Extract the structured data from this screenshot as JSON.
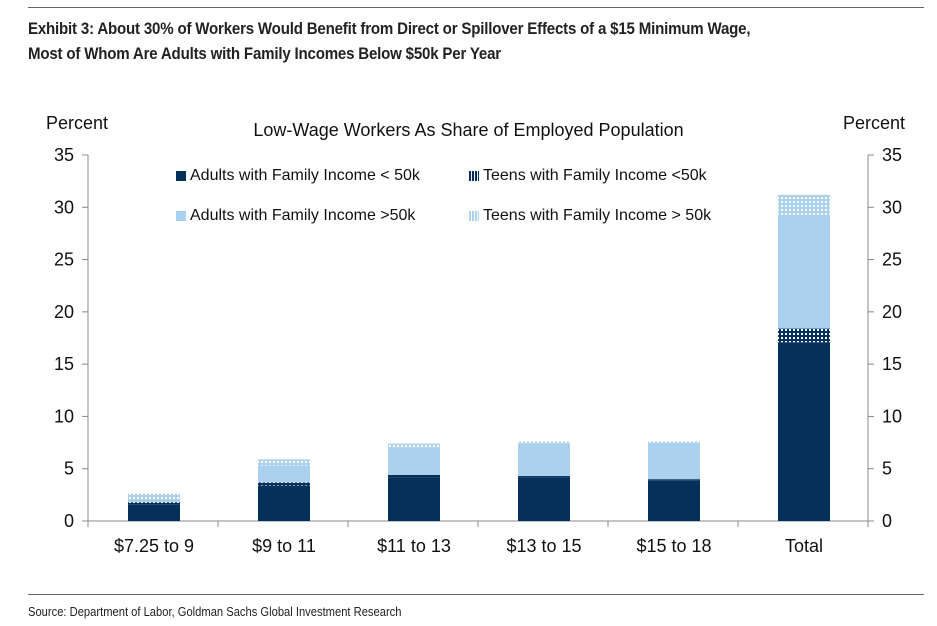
{
  "header": {
    "title_line1": "Exhibit 3: About 30% of Workers Would Benefit from Direct or Spillover Effects of a $15 Minimum Wage,",
    "title_line2": "Most of Whom Are Adults with Family Incomes Below $50k Per Year"
  },
  "footer": {
    "source": "Source: Department of Labor, Goldman Sachs Global Investment Research"
  },
  "colors": {
    "adults_below": "#04305A",
    "teens_below": "#04305A",
    "adults_above": "#ABD1EE",
    "teens_above": "#ABD1EE",
    "axis": "#888888"
  },
  "chart_data": {
    "type": "bar",
    "stacked": true,
    "title": "Low-Wage Workers As Share of Employed Population",
    "ylabel_left": "Percent",
    "ylabel_right": "Percent",
    "xlabel": "",
    "ylim": [
      0,
      35
    ],
    "yticks": [
      "0",
      "5",
      "10",
      "15",
      "20",
      "25",
      "30",
      "35"
    ],
    "grid": false,
    "legend_position": "top",
    "categories": [
      "$7.25 to 9",
      "$9 to 11",
      "$11 to 13",
      "$13 to 15",
      "$15 to 18",
      "Total"
    ],
    "series": [
      {
        "name": "Adults with Family Income < 50k",
        "key": "adults_below",
        "values": [
          1.6,
          3.4,
          4.2,
          4.2,
          3.9,
          17.1
        ]
      },
      {
        "name": "Teens with Family Income <50k",
        "key": "teens_below",
        "values": [
          0.2,
          0.3,
          0.2,
          0.1,
          0.1,
          1.3
        ]
      },
      {
        "name": "Adults with Family Income >50k",
        "key": "adults_above",
        "values": [
          0.3,
          1.6,
          2.6,
          3.1,
          3.5,
          10.9
        ]
      },
      {
        "name": "Teens with Family Income > 50k",
        "key": "teens_above",
        "values": [
          0.5,
          0.6,
          0.4,
          0.2,
          0.1,
          1.9
        ]
      }
    ]
  }
}
